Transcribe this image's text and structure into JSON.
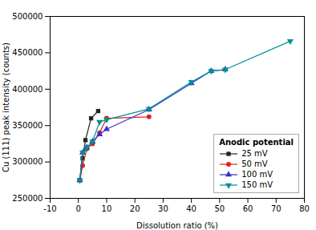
{
  "chart_data": {
    "type": "line",
    "xlabel": "Dissolution ratio (%)",
    "ylabel": "Cu (111) peak intensity (counts)",
    "xlim": [
      -10,
      80
    ],
    "ylim": [
      250000,
      500000
    ],
    "xticks": [
      -10,
      0,
      10,
      20,
      30,
      40,
      50,
      60,
      70,
      80
    ],
    "yticks": [
      250000,
      300000,
      350000,
      400000,
      450000,
      500000
    ],
    "grid": false,
    "legend": "lower right",
    "legend_title": "Anodic potential",
    "series": [
      {
        "name": "25 mV",
        "color": "#222222",
        "marker": "square",
        "x": [
          0.5,
          1.5,
          2.5,
          4.5,
          7.0
        ],
        "values": [
          275000,
          305000,
          330000,
          360000,
          370000
        ]
      },
      {
        "name": "50 mV",
        "color": "#dd2222",
        "marker": "circle",
        "x": [
          0.5,
          1.5,
          3.0,
          5.0,
          7.5,
          10.0,
          25.0
        ],
        "values": [
          275000,
          295000,
          318000,
          325000,
          340000,
          360000,
          362000
        ]
      },
      {
        "name": "100 mV",
        "color": "#3333cc",
        "marker": "triangle-up",
        "x": [
          0.5,
          1.5,
          3.0,
          5.0,
          7.5,
          10.0,
          25.0,
          40.0,
          47.0,
          52.0
        ],
        "values": [
          275000,
          313000,
          320000,
          328000,
          338000,
          345000,
          372000,
          408000,
          425000,
          427000
        ]
      },
      {
        "name": "150 mV",
        "color": "#009090",
        "marker": "triangle-down",
        "x": [
          0.5,
          1.5,
          3.0,
          5.0,
          7.5,
          10.0,
          25.0,
          40.0,
          47.0,
          52.0,
          75.0
        ],
        "values": [
          275000,
          313000,
          320000,
          328000,
          355000,
          358000,
          373000,
          410000,
          425000,
          427000,
          466000
        ]
      }
    ]
  }
}
